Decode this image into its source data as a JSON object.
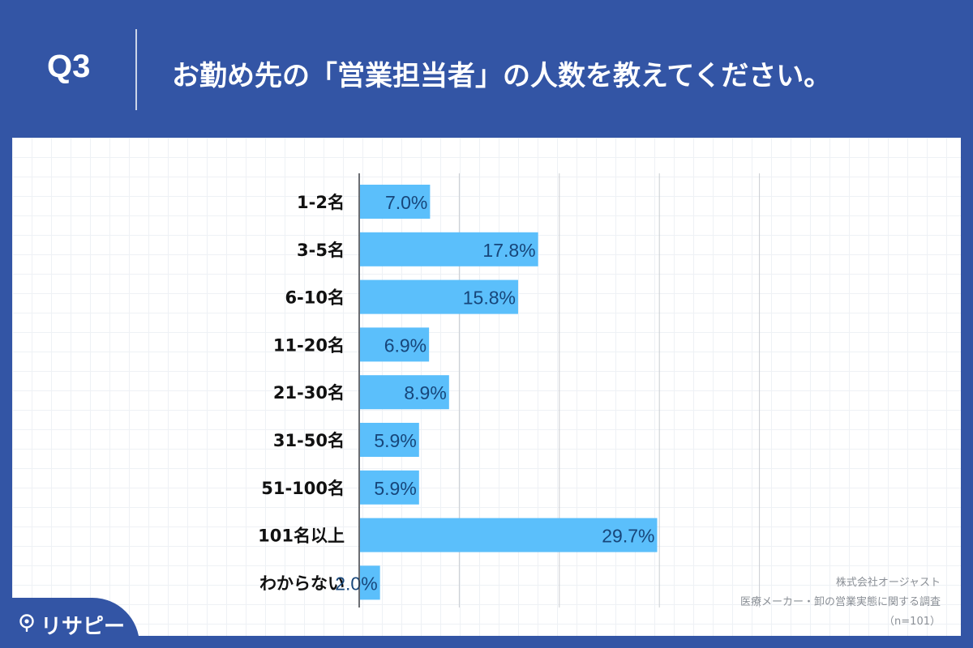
{
  "header": {
    "question_number": "Q3",
    "question_text": "お勤め先の「営業担当者」の人数を教えてください。"
  },
  "chart_data": {
    "type": "bar",
    "orientation": "horizontal",
    "categories": [
      "1-2名",
      "3-5名",
      "6-10名",
      "11-20名",
      "21-30名",
      "31-50名",
      "51-100名",
      "101名以上",
      "わからない"
    ],
    "values": [
      7.0,
      17.8,
      15.8,
      6.9,
      8.9,
      5.9,
      5.9,
      29.7,
      2.0
    ],
    "value_labels": [
      "7.0%",
      "17.8%",
      "15.8%",
      "6.9%",
      "8.9%",
      "5.9%",
      "5.9%",
      "29.7%",
      "2.0%"
    ],
    "xlim": [
      0,
      40
    ],
    "grid": true,
    "bar_color": "#5bbffb",
    "label_color": "#17467a"
  },
  "footnote": {
    "company": "株式会社オージャスト",
    "survey": "医療メーカー・卸の営業実態に関する調査",
    "sample": "（n=101）"
  },
  "brand": {
    "name": "リサピー",
    "icon": "location-pin-icon"
  },
  "colors": {
    "frame": "#3355a5",
    "bar": "#5bbffb",
    "value_label": "#17467a"
  }
}
